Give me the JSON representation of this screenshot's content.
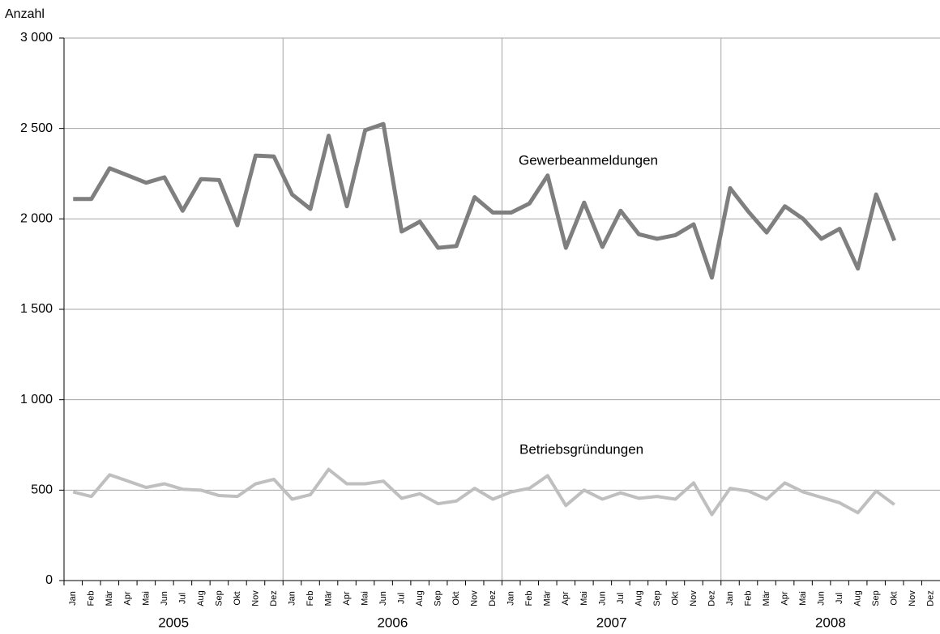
{
  "chart_data": {
    "type": "line",
    "y_label": "Anzahl",
    "categories": [
      "Jan",
      "Feb",
      "Mär",
      "Apr",
      "Mai",
      "Jun",
      "Jul",
      "Aug",
      "Sep",
      "Okt",
      "Nov",
      "Dez",
      "Jan",
      "Feb",
      "Mär",
      "Apr",
      "Mai",
      "Jun",
      "Jul",
      "Aug",
      "Sep",
      "Okt",
      "Nov",
      "Dez",
      "Jan",
      "Feb",
      "Mär",
      "Apr",
      "Mai",
      "Jun",
      "Jul",
      "Aug",
      "Sep",
      "Okt",
      "Nov",
      "Dez",
      "Jan",
      "Feb",
      "Mär",
      "Apr",
      "Mai",
      "Jun",
      "Jul",
      "Aug",
      "Sep",
      "Okt",
      "Nov",
      "Dez"
    ],
    "years": [
      "2005",
      "2006",
      "2007",
      "2008"
    ],
    "series": [
      {
        "name": "Gewerbeanmeldungen",
        "color": "#7f7f7f",
        "values": [
          2110,
          2110,
          2280,
          2240,
          2200,
          2230,
          2045,
          2220,
          2215,
          1965,
          2350,
          2345,
          2135,
          2055,
          2460,
          2070,
          2490,
          2525,
          1930,
          1985,
          1840,
          1850,
          2120,
          2035,
          2035,
          2085,
          2240,
          1840,
          2090,
          1845,
          2045,
          1915,
          1890,
          1910,
          1970,
          1675,
          2170,
          2040,
          1925,
          2070,
          2000,
          1890,
          1945,
          1725,
          2135,
          1880,
          null,
          null
        ]
      },
      {
        "name": "Betriebsgründungen",
        "color": "#bfbfbf",
        "values": [
          490,
          465,
          585,
          550,
          515,
          535,
          505,
          500,
          470,
          465,
          535,
          560,
          450,
          475,
          615,
          535,
          535,
          550,
          455,
          480,
          425,
          440,
          510,
          450,
          490,
          510,
          580,
          415,
          500,
          450,
          485,
          455,
          465,
          450,
          540,
          365,
          510,
          495,
          450,
          540,
          490,
          460,
          430,
          375,
          495,
          420,
          null,
          null
        ]
      }
    ],
    "ylim": [
      0,
      3000
    ],
    "yticks": [
      0,
      500,
      {
        "value": 1000,
        "label": "1 000"
      },
      {
        "value": 1500,
        "label": "1 500"
      },
      {
        "value": 2000,
        "label": "2 000"
      },
      {
        "value": 2500,
        "label": "2 500"
      },
      {
        "value": 3000,
        "label": "3 000"
      }
    ],
    "grid": true
  }
}
